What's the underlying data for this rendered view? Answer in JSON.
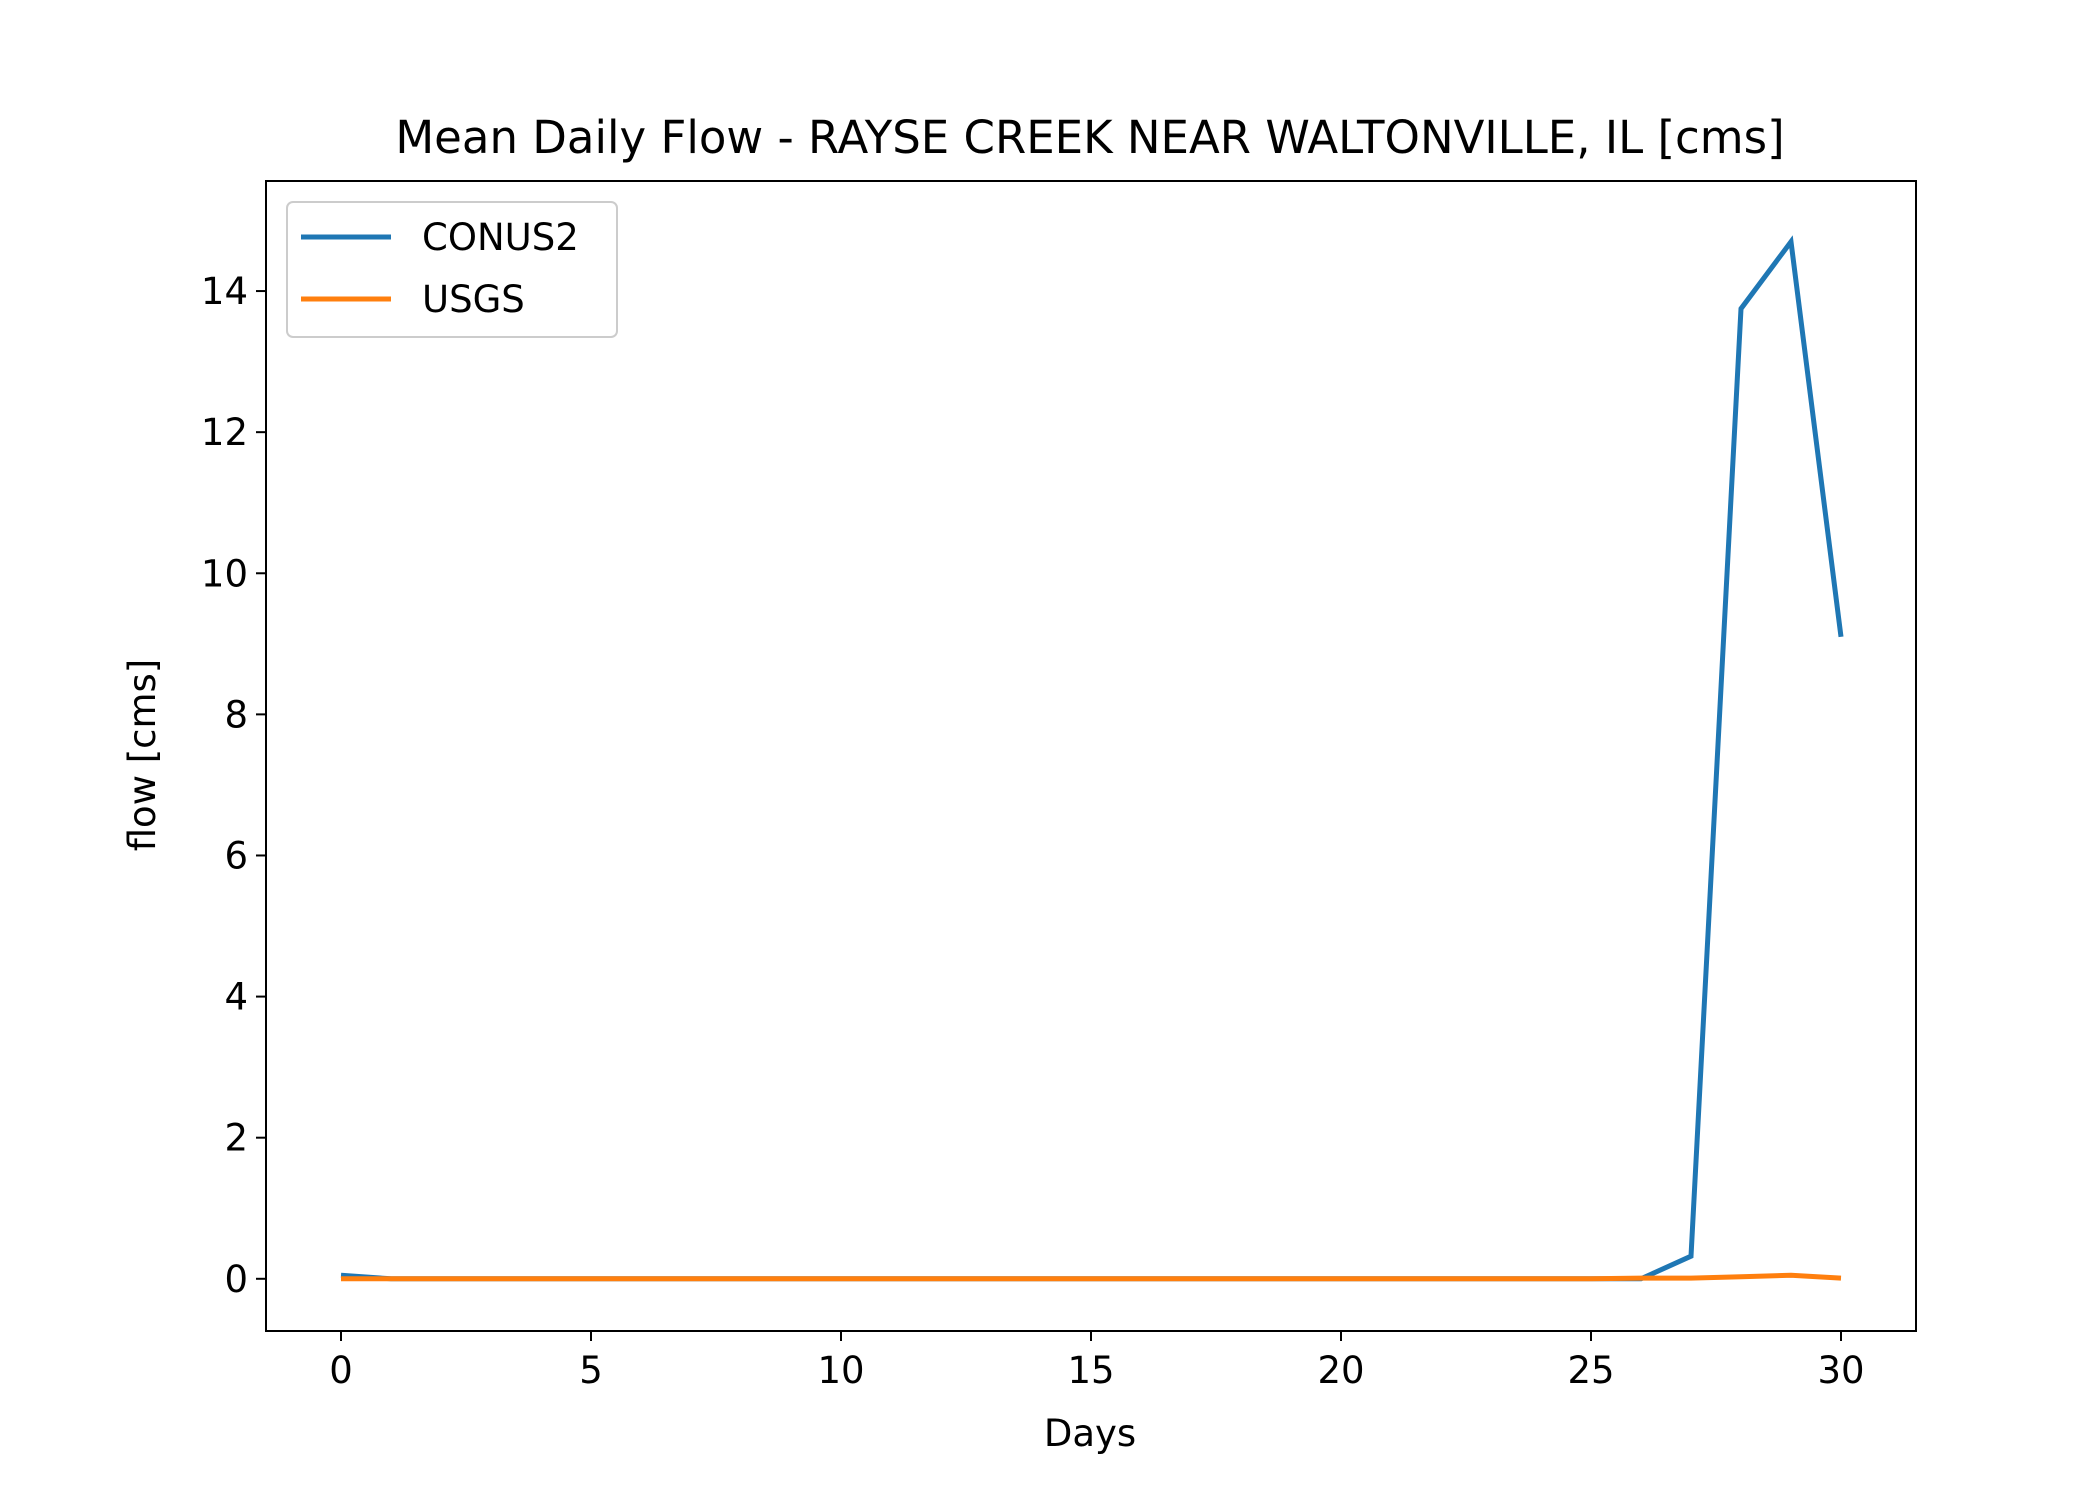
{
  "chart_data": {
    "type": "line",
    "title": "Mean Daily Flow - RAYSE CREEK NEAR WALTONVILLE, IL [cms]",
    "xlabel": "Days",
    "ylabel": "flow [cms]",
    "xlim": [
      -1.5,
      31.5
    ],
    "ylim": [
      -0.74,
      15.56
    ],
    "xticks": [
      0,
      5,
      10,
      15,
      20,
      25,
      30
    ],
    "yticks": [
      0,
      2,
      4,
      6,
      8,
      10,
      12,
      14
    ],
    "grid": false,
    "legend": "top-left",
    "x": [
      0,
      1,
      2,
      3,
      4,
      5,
      6,
      7,
      8,
      9,
      10,
      11,
      12,
      13,
      14,
      15,
      16,
      17,
      18,
      19,
      20,
      21,
      22,
      23,
      24,
      25,
      26,
      27,
      28,
      29,
      30
    ],
    "series": [
      {
        "name": "CONUS2",
        "color": "#1f77b4",
        "values": [
          0.05,
          0,
          0,
          0,
          0,
          0,
          0,
          0,
          0,
          0,
          0,
          0,
          0,
          0,
          0,
          0,
          0,
          0,
          0,
          0,
          0,
          0,
          0,
          0,
          0,
          0,
          0,
          0.32,
          13.75,
          14.7,
          9.1
        ]
      },
      {
        "name": "USGS",
        "color": "#ff7f0e",
        "values": [
          0,
          0,
          0,
          0,
          0,
          0,
          0,
          0,
          0,
          0,
          0,
          0,
          0,
          0,
          0,
          0,
          0,
          0,
          0,
          0,
          0,
          0,
          0,
          0,
          0,
          0,
          0.01,
          0.01,
          0.03,
          0.05,
          0.01
        ]
      }
    ]
  }
}
